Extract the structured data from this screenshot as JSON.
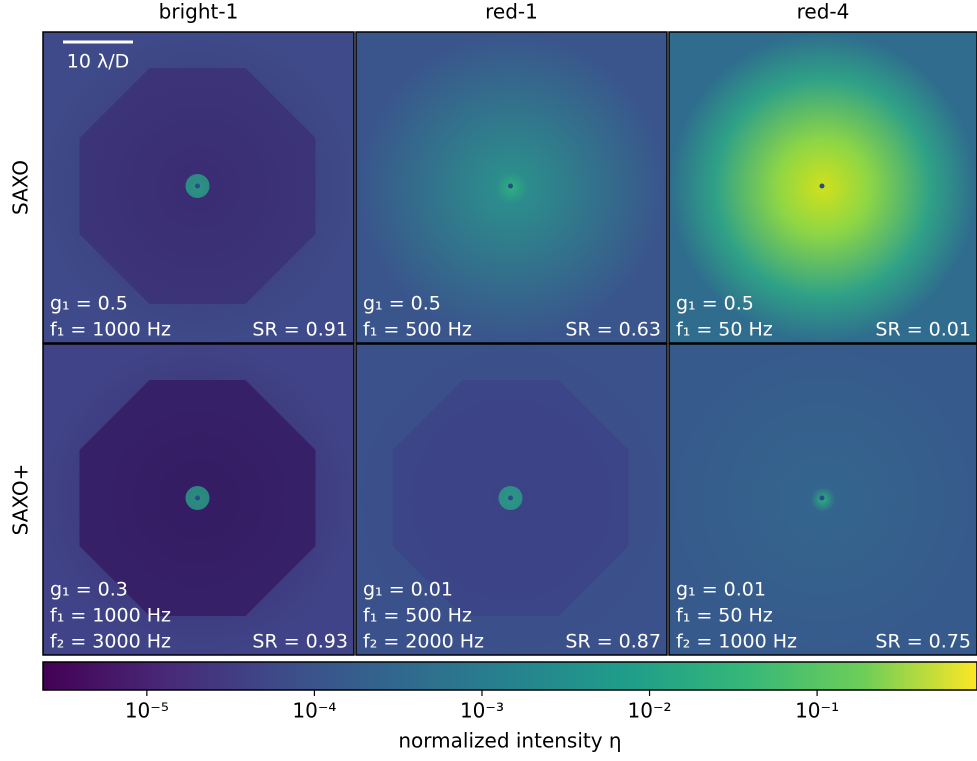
{
  "columns": [
    "bright-1",
    "red-1",
    "red-4"
  ],
  "rows": [
    "SAXO",
    "SAXO+"
  ],
  "panels": [
    [
      {
        "params": [
          "g₁ = 0.5",
          "f₁ = 1000 Hz"
        ],
        "sr": "SR = 0.91"
      },
      {
        "params": [
          "g₁ = 0.5",
          "f₁ = 500 Hz"
        ],
        "sr": "SR = 0.63"
      },
      {
        "params": [
          "g₁ = 0.5",
          "f₁ = 50 Hz"
        ],
        "sr": "SR = 0.01"
      }
    ],
    [
      {
        "params": [
          "g₁ = 0.3",
          "f₁ = 1000 Hz",
          "f₂ = 3000 Hz"
        ],
        "sr": "SR = 0.93"
      },
      {
        "params": [
          "g₁ = 0.01",
          "f₁ = 500 Hz",
          "f₂ = 2000 Hz"
        ],
        "sr": "SR = 0.87"
      },
      {
        "params": [
          "g₁ = 0.01",
          "f₁ = 50 Hz",
          "f₂ = 1000 Hz"
        ],
        "sr": "SR = 0.75"
      }
    ]
  ],
  "scale_bar": "10 λ/D",
  "colorbar": {
    "label": "normalized intensity η",
    "log": true,
    "lim": [
      2.4e-06,
      0.9
    ],
    "ticks": [
      {
        "value": 1e-05,
        "label": "10⁻⁵"
      },
      {
        "value": 0.0001,
        "label": "10⁻⁴"
      },
      {
        "value": 0.001,
        "label": "10⁻³"
      },
      {
        "value": 0.01,
        "label": "10⁻²"
      },
      {
        "value": 0.1,
        "label": "10⁻¹"
      }
    ]
  }
}
